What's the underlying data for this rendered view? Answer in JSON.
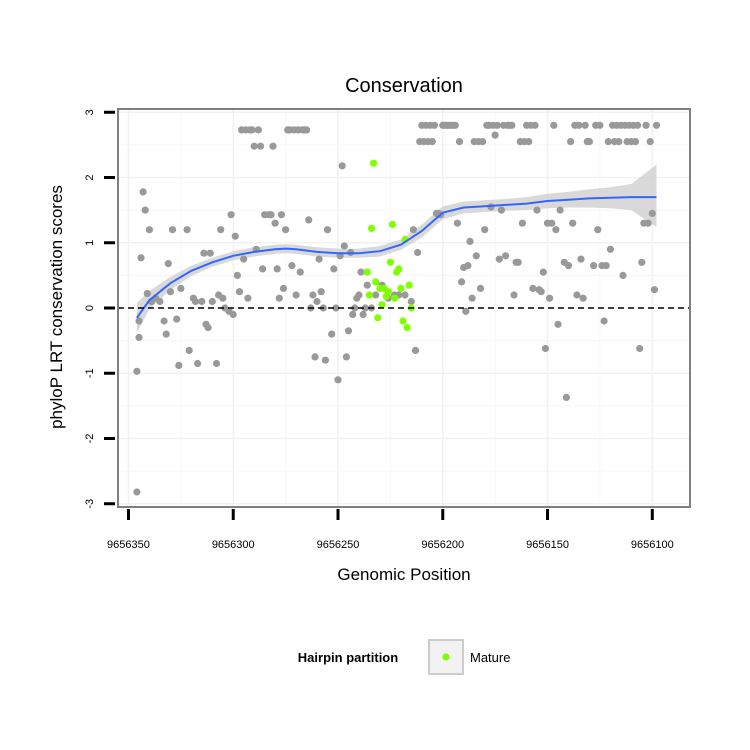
{
  "chart_data": {
    "type": "scatter",
    "title": "Conservation",
    "xlabel": "Genomic Position",
    "ylabel": "phyloP LRT conservation scores",
    "x_reversed": true,
    "xlim": [
      9656355,
      9656082
    ],
    "ylim": [
      -3.05,
      3.05
    ],
    "x_ticks": [
      9656350,
      9656300,
      9656250,
      9656200,
      9656150,
      9656100
    ],
    "x_tick_labels": [
      "9656350",
      "9656300",
      "9656250",
      "9656200",
      "9656150",
      "9656100"
    ],
    "y_ticks": [
      -3,
      -2,
      -1,
      0,
      1,
      2,
      3
    ],
    "y_tick_labels": [
      "-3",
      "-2",
      "-1",
      "0",
      "1",
      "2",
      "3"
    ],
    "grid": true,
    "reference_line": {
      "y": 0,
      "style": "dashed"
    },
    "legend": {
      "title": "Hairpin partition",
      "placement": "bottom",
      "entries": [
        {
          "label": "Mature",
          "color": "#7fff00"
        }
      ]
    },
    "colors": {
      "hairpin": "#999999",
      "mature": "#7fff00",
      "smooth": "#3366ff",
      "band": "#cccccc",
      "panel_border": "#7f7f7f"
    },
    "series": [
      {
        "group": "hairpin",
        "points": [
          [
            9656346,
            -2.82
          ],
          [
            9656346,
            -0.97
          ],
          [
            9656345,
            -0.45
          ],
          [
            9656345,
            -0.2
          ],
          [
            9656344,
            0.77
          ],
          [
            9656343,
            1.78
          ],
          [
            9656342,
            1.5
          ],
          [
            9656341,
            0.22
          ],
          [
            9656340,
            1.2
          ],
          [
            9656339,
            0.1
          ],
          [
            9656337,
            0.15
          ],
          [
            9656335,
            0.1
          ],
          [
            9656333,
            -0.2
          ],
          [
            9656332,
            -0.4
          ],
          [
            9656331,
            0.68
          ],
          [
            9656330,
            0.25
          ],
          [
            9656329,
            1.2
          ],
          [
            9656327,
            -0.17
          ],
          [
            9656326,
            -0.88
          ],
          [
            9656325,
            0.3
          ],
          [
            9656322,
            1.2
          ],
          [
            9656321,
            -0.65
          ],
          [
            9656319,
            0.15
          ],
          [
            9656318,
            0.1
          ],
          [
            9656317,
            -0.85
          ],
          [
            9656315,
            0.1
          ],
          [
            9656314,
            0.84
          ],
          [
            9656313,
            -0.25
          ],
          [
            9656312,
            -0.3
          ],
          [
            9656311,
            0.84
          ],
          [
            9656310,
            0.1
          ],
          [
            9656308,
            -0.85
          ],
          [
            9656307,
            0.2
          ],
          [
            9656306,
            1.2
          ],
          [
            9656305,
            0.15
          ],
          [
            9656304,
            0.0
          ],
          [
            9656302,
            -0.05
          ],
          [
            9656301,
            1.43
          ],
          [
            9656300,
            -0.1
          ],
          [
            9656299,
            1.1
          ],
          [
            9656298,
            0.5
          ],
          [
            9656297,
            0.25
          ],
          [
            9656296,
            2.73
          ],
          [
            9656295,
            0.75
          ],
          [
            9656294,
            2.73
          ],
          [
            9656293,
            0.15
          ],
          [
            9656292,
            2.73
          ],
          [
            9656291,
            2.73
          ],
          [
            9656290,
            2.48
          ],
          [
            9656289,
            0.9
          ],
          [
            9656288,
            2.73
          ],
          [
            9656287,
            2.48
          ],
          [
            9656286,
            0.6
          ],
          [
            9656285,
            1.43
          ],
          [
            9656283,
            1.43
          ],
          [
            9656282,
            1.43
          ],
          [
            9656281,
            2.48
          ],
          [
            9656280,
            1.3
          ],
          [
            9656279,
            0.6
          ],
          [
            9656278,
            0.15
          ],
          [
            9656277,
            1.43
          ],
          [
            9656276,
            0.3
          ],
          [
            9656275,
            1.2
          ],
          [
            9656274,
            2.73
          ],
          [
            9656273,
            2.73
          ],
          [
            9656272,
            0.65
          ],
          [
            9656271,
            2.73
          ],
          [
            9656270,
            0.2
          ],
          [
            9656269,
            2.73
          ],
          [
            9656268,
            0.55
          ],
          [
            9656267,
            2.73
          ],
          [
            9656266,
            2.73
          ],
          [
            9656265,
            2.73
          ],
          [
            9656264,
            1.35
          ],
          [
            9656263,
            0.0
          ],
          [
            9656262,
            0.2
          ],
          [
            9656261,
            -0.75
          ],
          [
            9656260,
            0.1
          ],
          [
            9656259,
            0.75
          ],
          [
            9656258,
            0.25
          ],
          [
            9656257,
            0.0
          ],
          [
            9656256,
            -0.8
          ],
          [
            9656255,
            1.2
          ],
          [
            9656253,
            -0.4
          ],
          [
            9656252,
            0.6
          ],
          [
            9656251,
            0.0
          ],
          [
            9656250,
            -1.1
          ],
          [
            9656249,
            0.8
          ],
          [
            9656248,
            2.18
          ],
          [
            9656247,
            0.95
          ],
          [
            9656246,
            -0.75
          ],
          [
            9656245,
            -0.35
          ],
          [
            9656244,
            0.85
          ],
          [
            9656243,
            -0.1
          ],
          [
            9656242,
            0.0
          ],
          [
            9656241,
            0.15
          ],
          [
            9656240,
            0.2
          ],
          [
            9656239,
            0.55
          ],
          [
            9656238,
            -0.1
          ],
          [
            9656237,
            0.0
          ],
          [
            9656236,
            0.35
          ],
          [
            9656234,
            0.0
          ],
          [
            9656232,
            0.2
          ],
          [
            9656229,
            0.35
          ],
          [
            9656226,
            0.15
          ],
          [
            9656223,
            0.2
          ],
          [
            9656221,
            0.2
          ],
          [
            9656218,
            0.2
          ],
          [
            9656215,
            0.1
          ],
          [
            9656214,
            1.2
          ],
          [
            9656213,
            -0.65
          ],
          [
            9656212,
            0.85
          ],
          [
            9656211,
            2.55
          ],
          [
            9656210,
            2.8
          ],
          [
            9656209,
            2.55
          ],
          [
            9656208,
            2.8
          ],
          [
            9656207,
            2.55
          ],
          [
            9656206,
            2.8
          ],
          [
            9656205,
            2.55
          ],
          [
            9656204,
            2.8
          ],
          [
            9656203,
            1.45
          ],
          [
            9656202,
            1.45
          ],
          [
            9656201,
            1.43
          ],
          [
            9656200,
            2.8
          ],
          [
            9656199,
            2.8
          ],
          [
            9656198,
            2.8
          ],
          [
            9656197,
            2.8
          ],
          [
            9656196,
            2.8
          ],
          [
            9656195,
            2.8
          ],
          [
            9656194,
            2.8
          ],
          [
            9656193,
            1.3
          ],
          [
            9656192,
            2.55
          ],
          [
            9656191,
            0.4
          ],
          [
            9656190,
            0.62
          ],
          [
            9656189,
            -0.05
          ],
          [
            9656188,
            0.65
          ],
          [
            9656187,
            1.02
          ],
          [
            9656186,
            0.15
          ],
          [
            9656185,
            2.55
          ],
          [
            9656184,
            0.8
          ],
          [
            9656183,
            2.55
          ],
          [
            9656182,
            0.3
          ],
          [
            9656181,
            2.55
          ],
          [
            9656180,
            1.2
          ],
          [
            9656179,
            2.8
          ],
          [
            9656178,
            2.8
          ],
          [
            9656177,
            1.55
          ],
          [
            9656176,
            2.8
          ],
          [
            9656175,
            2.65
          ],
          [
            9656174,
            2.8
          ],
          [
            9656173,
            0.75
          ],
          [
            9656172,
            1.5
          ],
          [
            9656171,
            2.8
          ],
          [
            9656170,
            0.8
          ],
          [
            9656169,
            2.8
          ],
          [
            9656168,
            2.8
          ],
          [
            9656167,
            2.8
          ],
          [
            9656166,
            0.2
          ],
          [
            9656165,
            0.7
          ],
          [
            9656164,
            0.7
          ],
          [
            9656163,
            2.55
          ],
          [
            9656162,
            1.3
          ],
          [
            9656161,
            2.55
          ],
          [
            9656160,
            2.8
          ],
          [
            9656159,
            2.55
          ],
          [
            9656158,
            2.8
          ],
          [
            9656157,
            0.3
          ],
          [
            9656156,
            2.8
          ],
          [
            9656155,
            1.5
          ],
          [
            9656154,
            0.28
          ],
          [
            9656153,
            0.25
          ],
          [
            9656152,
            0.55
          ],
          [
            9656151,
            -0.62
          ],
          [
            9656150,
            1.3
          ],
          [
            9656149,
            0.15
          ],
          [
            9656148,
            1.3
          ],
          [
            9656147,
            2.8
          ],
          [
            9656146,
            1.2
          ],
          [
            9656145,
            -0.25
          ],
          [
            9656144,
            1.5
          ],
          [
            9656142,
            0.7
          ],
          [
            9656141,
            -1.37
          ],
          [
            9656140,
            0.65
          ],
          [
            9656139,
            2.55
          ],
          [
            9656138,
            1.3
          ],
          [
            9656137,
            2.8
          ],
          [
            9656136,
            0.2
          ],
          [
            9656135,
            2.8
          ],
          [
            9656134,
            0.75
          ],
          [
            9656133,
            0.15
          ],
          [
            9656132,
            2.8
          ],
          [
            9656131,
            2.55
          ],
          [
            9656130,
            2.55
          ],
          [
            9656128,
            0.65
          ],
          [
            9656127,
            2.8
          ],
          [
            9656126,
            1.2
          ],
          [
            9656125,
            2.8
          ],
          [
            9656124,
            0.65
          ],
          [
            9656123,
            -0.2
          ],
          [
            9656122,
            0.65
          ],
          [
            9656121,
            2.55
          ],
          [
            9656120,
            0.9
          ],
          [
            9656119,
            2.8
          ],
          [
            9656118,
            2.55
          ],
          [
            9656117,
            2.8
          ],
          [
            9656116,
            2.55
          ],
          [
            9656115,
            2.8
          ],
          [
            9656114,
            0.5
          ],
          [
            9656113,
            2.8
          ],
          [
            9656112,
            2.55
          ],
          [
            9656111,
            2.8
          ],
          [
            9656110,
            2.55
          ],
          [
            9656109,
            2.8
          ],
          [
            9656108,
            2.55
          ],
          [
            9656107,
            2.8
          ],
          [
            9656106,
            -0.62
          ],
          [
            9656105,
            0.7
          ],
          [
            9656104,
            1.3
          ],
          [
            9656103,
            2.8
          ],
          [
            9656102,
            1.3
          ],
          [
            9656101,
            2.55
          ],
          [
            9656100,
            1.45
          ],
          [
            9656099,
            0.28
          ],
          [
            9656098,
            2.8
          ]
        ]
      },
      {
        "group": "mature",
        "name": "Mature",
        "points": [
          [
            9656236,
            0.55
          ],
          [
            9656235,
            0.2
          ],
          [
            9656234,
            1.22
          ],
          [
            9656233,
            2.22
          ],
          [
            9656232,
            0.4
          ],
          [
            9656231,
            -0.15
          ],
          [
            9656230,
            0.3
          ],
          [
            9656229,
            0.05
          ],
          [
            9656228,
            0.3
          ],
          [
            9656227,
            0.18
          ],
          [
            9656226,
            0.25
          ],
          [
            9656225,
            0.7
          ],
          [
            9656224,
            1.28
          ],
          [
            9656223,
            0.15
          ],
          [
            9656222,
            0.55
          ],
          [
            9656221,
            0.6
          ],
          [
            9656220,
            0.3
          ],
          [
            9656219,
            -0.2
          ],
          [
            9656218,
            1.05
          ],
          [
            9656217,
            -0.3
          ],
          [
            9656216,
            0.35
          ],
          [
            9656215,
            0.0
          ]
        ]
      }
    ],
    "smooth": {
      "x": [
        9656346,
        9656340,
        9656330,
        9656320,
        9656310,
        9656300,
        9656290,
        9656280,
        9656275,
        9656270,
        9656260,
        9656250,
        9656240,
        9656230,
        9656220,
        9656210,
        9656200,
        9656190,
        9656180,
        9656170,
        9656160,
        9656150,
        9656140,
        9656130,
        9656120,
        9656110,
        9656098
      ],
      "y": [
        -0.15,
        0.12,
        0.38,
        0.57,
        0.7,
        0.8,
        0.86,
        0.9,
        0.91,
        0.9,
        0.86,
        0.84,
        0.84,
        0.87,
        0.97,
        1.18,
        1.46,
        1.54,
        1.56,
        1.58,
        1.6,
        1.64,
        1.66,
        1.68,
        1.69,
        1.7,
        1.7
      ],
      "lower": [
        -0.38,
        -0.02,
        0.28,
        0.49,
        0.63,
        0.73,
        0.79,
        0.83,
        0.84,
        0.83,
        0.79,
        0.77,
        0.77,
        0.79,
        0.89,
        1.08,
        1.36,
        1.45,
        1.47,
        1.49,
        1.5,
        1.53,
        1.54,
        1.54,
        1.53,
        1.5,
        1.24
      ],
      "upper": [
        0.08,
        0.26,
        0.48,
        0.65,
        0.77,
        0.87,
        0.93,
        0.97,
        0.98,
        0.97,
        0.93,
        0.91,
        0.91,
        0.95,
        1.05,
        1.28,
        1.56,
        1.63,
        1.65,
        1.67,
        1.7,
        1.75,
        1.78,
        1.82,
        1.85,
        1.9,
        2.2
      ]
    }
  }
}
